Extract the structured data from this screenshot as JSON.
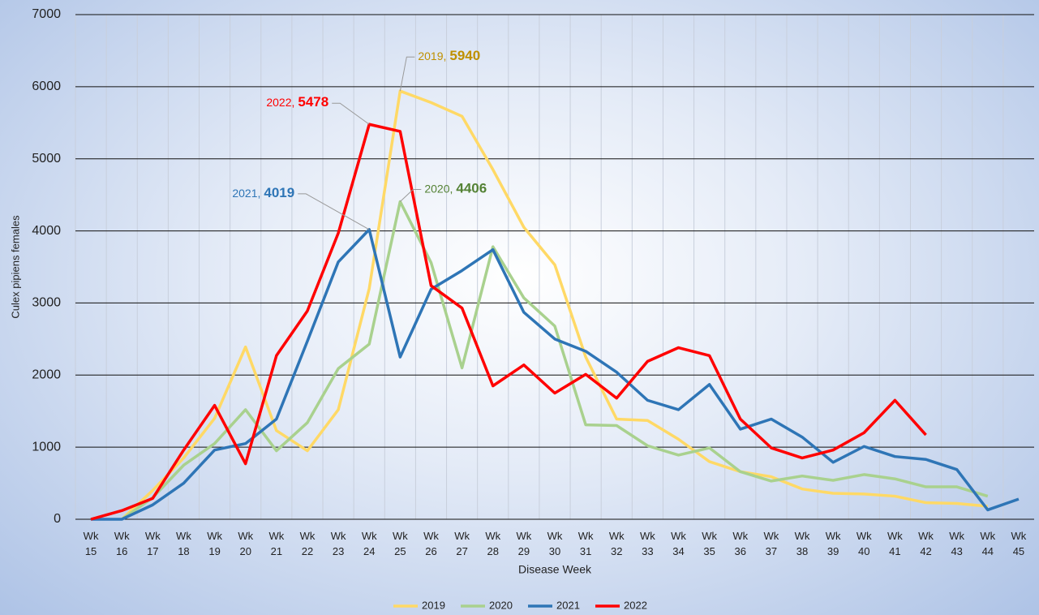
{
  "chart_data": {
    "type": "line",
    "y_label": "Culex pipiens females",
    "x_label": "Disease Week",
    "categories": [
      "Wk 15",
      "Wk 16",
      "Wk 17",
      "Wk 18",
      "Wk 19",
      "Wk 20",
      "Wk 21",
      "Wk 22",
      "Wk 23",
      "Wk 24",
      "Wk 25",
      "Wk 26",
      "Wk 27",
      "Wk 28",
      "Wk 29",
      "Wk 30",
      "Wk 31",
      "Wk 32",
      "Wk 33",
      "Wk 34",
      "Wk 35",
      "Wk 36",
      "Wk 37",
      "Wk 38",
      "Wk 39",
      "Wk 40",
      "Wk 41",
      "Wk 42",
      "Wk 43",
      "Wk 44",
      "Wk 45"
    ],
    "series": [
      {
        "name": "2019",
        "color": "#ffd966",
        "values": [
          null,
          0,
          400,
          850,
          1400,
          2390,
          1230,
          950,
          1520,
          3200,
          5940,
          5780,
          5590,
          4850,
          4050,
          3530,
          2250,
          1390,
          1370,
          1110,
          800,
          660,
          590,
          420,
          360,
          350,
          320,
          230,
          220,
          180,
          null
        ]
      },
      {
        "name": "2020",
        "color": "#a9d18e",
        "values": [
          null,
          0,
          300,
          750,
          1050,
          1520,
          950,
          1340,
          2090,
          2430,
          4406,
          3560,
          2100,
          3780,
          3070,
          2680,
          1310,
          1300,
          1020,
          890,
          990,
          660,
          530,
          600,
          540,
          620,
          560,
          450,
          450,
          320,
          null
        ]
      },
      {
        "name": "2021",
        "color": "#2e75b6",
        "values": [
          0,
          0,
          200,
          500,
          960,
          1050,
          1390,
          2470,
          3570,
          4019,
          2250,
          3190,
          3450,
          3740,
          2870,
          2500,
          2330,
          2040,
          1650,
          1520,
          1870,
          1250,
          1390,
          1140,
          790,
          1010,
          870,
          830,
          690,
          130,
          280
        ]
      },
      {
        "name": "2022",
        "color": "#ff0000",
        "values": [
          0,
          120,
          290,
          960,
          1580,
          770,
          2270,
          2890,
          3970,
          5478,
          5380,
          3240,
          2930,
          1850,
          2140,
          1750,
          2010,
          1680,
          2190,
          2380,
          2270,
          1390,
          990,
          850,
          960,
          1200,
          1650,
          1170,
          null,
          null,
          null
        ]
      }
    ],
    "annotations": [
      "2019,",
      "2020,",
      "2021,",
      "2022,"
    ],
    "annotation_colors": [
      "#bf9000",
      "#548235",
      "#2e75b6",
      "#ff0000"
    ],
    "ylim": [
      0,
      7000
    ],
    "yticks": [
      0,
      1000,
      2000,
      3000,
      4000,
      5000,
      6000,
      7000
    ],
    "grid": true,
    "legend": "bottom"
  }
}
